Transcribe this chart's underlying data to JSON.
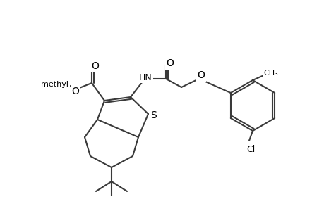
{
  "bg_color": "#ffffff",
  "lc": "#3a3a3a",
  "lw": 1.5,
  "figsize": [
    4.6,
    3.0
  ],
  "dpi": 100,
  "xlim": [
    0,
    460
  ],
  "ylim": [
    0,
    300
  ]
}
